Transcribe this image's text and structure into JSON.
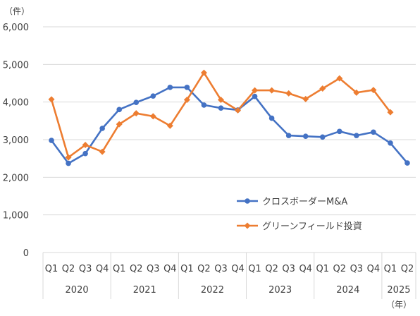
{
  "chart_data": {
    "type": "line",
    "y_unit": "（件）",
    "x_unit": "（年）",
    "ylim": [
      0,
      6000
    ],
    "yticks": [
      0,
      1000,
      2000,
      3000,
      4000,
      5000,
      6000
    ],
    "ytick_labels": [
      "0",
      "1,000",
      "2,000",
      "3,000",
      "4,000",
      "5,000",
      "6,000"
    ],
    "grid": true,
    "legend_position": "bottom-right",
    "categories": [
      "Q1",
      "Q2",
      "Q3",
      "Q4",
      "Q1",
      "Q2",
      "Q3",
      "Q4",
      "Q1",
      "Q2",
      "Q3",
      "Q4",
      "Q1",
      "Q2",
      "Q3",
      "Q4",
      "Q1",
      "Q2",
      "Q3",
      "Q4",
      "Q1",
      "Q2"
    ],
    "year_groups": [
      {
        "label": "2020",
        "span": 4
      },
      {
        "label": "2021",
        "span": 4
      },
      {
        "label": "2022",
        "span": 4
      },
      {
        "label": "2023",
        "span": 4
      },
      {
        "label": "2024",
        "span": 4
      },
      {
        "label": "2025",
        "span": 2
      }
    ],
    "series": [
      {
        "name": "クロスボーダーM&A",
        "color": "#4472C4",
        "marker": "circle",
        "values": [
          2980,
          2370,
          2630,
          3300,
          3800,
          3990,
          4160,
          4390,
          4390,
          3920,
          3840,
          3790,
          4150,
          3570,
          3110,
          3090,
          3070,
          3220,
          3110,
          3200,
          2910,
          2380
        ]
      },
      {
        "name": "グリーンフィールド投資",
        "color": "#ED7D31",
        "marker": "diamond",
        "values": [
          4070,
          2530,
          2860,
          2680,
          3410,
          3700,
          3620,
          3370,
          4060,
          4780,
          4060,
          3780,
          4310,
          4310,
          4230,
          4080,
          4360,
          4630,
          4250,
          4320,
          3730,
          null
        ]
      }
    ]
  }
}
